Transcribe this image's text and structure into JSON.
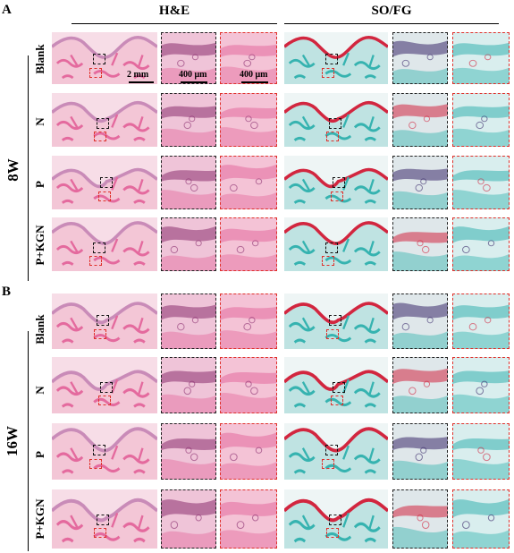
{
  "panels": [
    {
      "letter": "A",
      "week": "8W",
      "rows": [
        "Blank",
        "N",
        "P",
        "P+KGN"
      ]
    },
    {
      "letter": "B",
      "week": "16W",
      "rows": [
        "Blank",
        "N",
        "P",
        "P+KGN"
      ]
    }
  ],
  "columns": {
    "he": "H&E",
    "sofg": "SO/FG"
  },
  "scale_labels": {
    "overview": "2 mm",
    "zoom_black": "400 μm",
    "zoom_red": "400 μm"
  },
  "stain_colors": {
    "he_background": "#f3c6d6",
    "he_tissue": "#e46a9e",
    "he_dark": "#8a2f6f",
    "sofg_bone": "#36b3b0",
    "sofg_cartilage": "#d2263f",
    "sofg_dark": "#3b2a6a"
  },
  "frame_colors": {
    "black_box": "#222222",
    "red_box": "#e0302b"
  }
}
